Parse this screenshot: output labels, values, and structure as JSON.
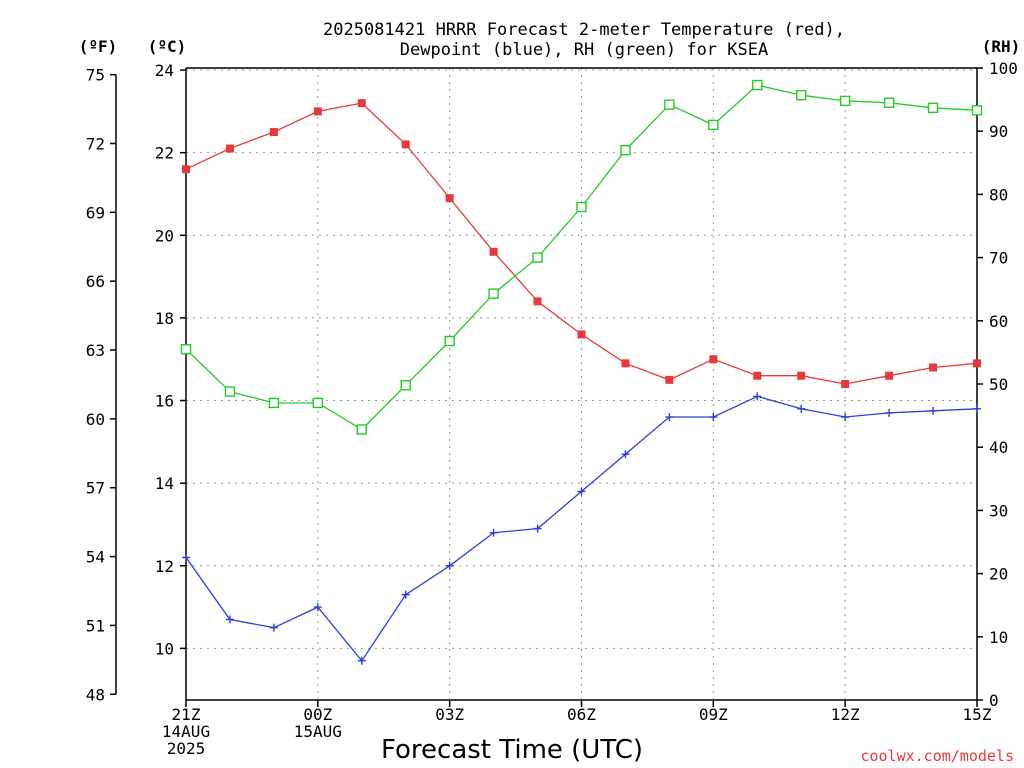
{
  "chart_data": {
    "type": "line",
    "title_line1": "2025081421 HRRR Forecast 2-meter Temperature (red),",
    "title_line2": "Dewpoint (blue), RH (green) for KSEA",
    "xlabel": "Forecast Time (UTC)",
    "y_left_unit": "(ºC)",
    "y_far_left_unit": "(ºF)",
    "y_right_unit": "(RH)",
    "credit": "coolwx.com/models",
    "colors": {
      "temperature": "#e8393a",
      "dewpoint": "#2a3fd9",
      "rh": "#22cc22"
    },
    "x_hours": [
      0,
      1,
      2,
      3,
      4,
      5,
      6,
      7,
      8,
      9,
      10,
      11,
      12,
      13,
      14,
      15,
      16,
      17,
      18
    ],
    "x_ticks": [
      {
        "hour": 0,
        "lines": [
          "21Z",
          "14AUG",
          "2025"
        ]
      },
      {
        "hour": 3,
        "lines": [
          "00Z",
          "15AUG"
        ]
      },
      {
        "hour": 6,
        "lines": [
          "03Z"
        ]
      },
      {
        "hour": 9,
        "lines": [
          "06Z"
        ]
      },
      {
        "hour": 12,
        "lines": [
          "09Z"
        ]
      },
      {
        "hour": 15,
        "lines": [
          "12Z"
        ]
      },
      {
        "hour": 18,
        "lines": [
          "15Z"
        ]
      }
    ],
    "celsius_axis": {
      "min": 8.75,
      "max": 24.05,
      "ticks": [
        "10",
        "12",
        "14",
        "16",
        "18",
        "20",
        "22",
        "24"
      ]
    },
    "fahrenheit_ticks": [
      "48",
      "51",
      "54",
      "57",
      "60",
      "63",
      "66",
      "69",
      "72",
      "75"
    ],
    "rh_axis": {
      "min": 0,
      "max": 100,
      "ticks": [
        "0",
        "10",
        "20",
        "30",
        "40",
        "50",
        "60",
        "70",
        "80",
        "90",
        "100"
      ]
    },
    "series": [
      {
        "key": "temperature",
        "axis": "celsius",
        "marker": "filled-square",
        "values": [
          21.6,
          22.1,
          22.5,
          23.0,
          23.2,
          22.2,
          20.9,
          19.6,
          18.4,
          17.6,
          16.9,
          16.5,
          17.0,
          16.6,
          16.6,
          16.4,
          16.6,
          16.8,
          16.9
        ]
      },
      {
        "key": "dewpoint",
        "axis": "celsius",
        "marker": "plus",
        "values": [
          12.2,
          10.7,
          10.5,
          11.0,
          9.7,
          11.3,
          12.0,
          12.8,
          12.9,
          13.8,
          14.7,
          15.6,
          15.6,
          16.1,
          15.8,
          15.6,
          15.7,
          15.75,
          15.8
        ]
      },
      {
        "key": "rh",
        "axis": "rh",
        "marker": "open-square",
        "values": [
          55.5,
          48.8,
          47.0,
          47.0,
          42.8,
          49.8,
          56.8,
          64.3,
          70.0,
          78.0,
          87.0,
          94.2,
          91.0,
          97.3,
          95.7,
          94.8,
          94.5,
          93.7,
          93.3
        ]
      }
    ]
  }
}
